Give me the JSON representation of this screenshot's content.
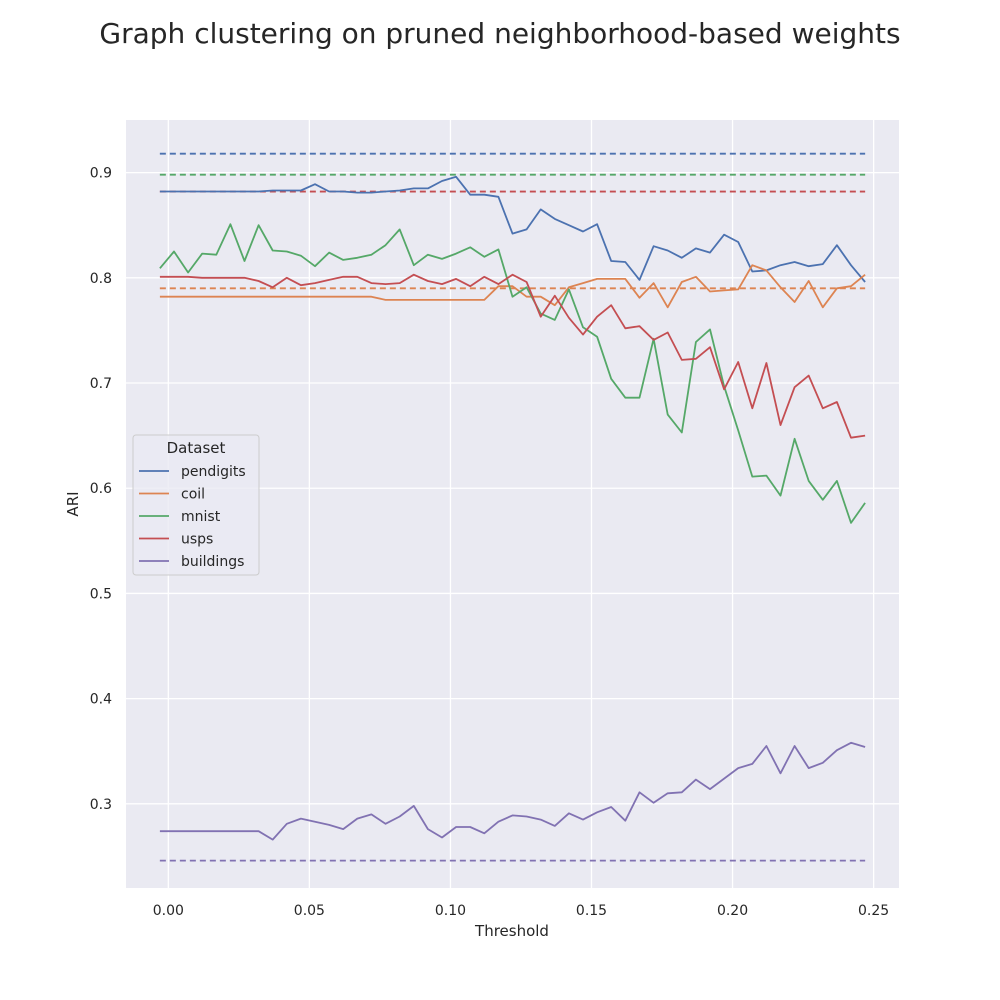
{
  "chart_data": {
    "type": "line",
    "title": "Graph clustering on pruned neighborhood-based weights",
    "xlabel": "Threshold",
    "ylabel": "ARI",
    "xlim": [
      -0.015,
      0.259
    ],
    "ylim": [
      0.22,
      0.95
    ],
    "xticks": [
      0.0,
      0.05,
      0.1,
      0.15,
      0.2,
      0.25
    ],
    "xtick_labels": [
      "0.00",
      "0.05",
      "0.10",
      "0.15",
      "0.20",
      "0.25"
    ],
    "yticks": [
      0.3,
      0.4,
      0.5,
      0.6,
      0.7,
      0.8,
      0.9
    ],
    "ytick_labels": [
      "0.3",
      "0.4",
      "0.5",
      "0.6",
      "0.7",
      "0.8",
      "0.9"
    ],
    "grid": true,
    "legend": {
      "title": "Dataset",
      "placement": "center-left"
    },
    "x": [
      -0.003,
      0.002,
      0.007,
      0.012,
      0.017,
      0.022,
      0.027,
      0.032,
      0.037,
      0.042,
      0.047,
      0.052,
      0.057,
      0.062,
      0.067,
      0.072,
      0.077,
      0.082,
      0.087,
      0.092,
      0.097,
      0.102,
      0.107,
      0.112,
      0.117,
      0.122,
      0.127,
      0.132,
      0.137,
      0.142,
      0.147,
      0.152,
      0.157,
      0.162,
      0.167,
      0.172,
      0.177,
      0.182,
      0.187,
      0.192,
      0.197,
      0.202,
      0.207,
      0.212,
      0.217,
      0.222,
      0.227,
      0.232,
      0.237,
      0.242,
      0.247
    ],
    "series": [
      {
        "name": "pendigits",
        "color": "#4c72b0",
        "baseline": 0.918,
        "values": [
          0.882,
          0.882,
          0.882,
          0.882,
          0.882,
          0.882,
          0.882,
          0.882,
          0.883,
          0.883,
          0.883,
          0.889,
          0.882,
          0.882,
          0.881,
          0.881,
          0.882,
          0.883,
          0.885,
          0.885,
          0.892,
          0.896,
          0.879,
          0.879,
          0.877,
          0.842,
          0.846,
          0.865,
          0.856,
          0.85,
          0.844,
          0.851,
          0.816,
          0.815,
          0.798,
          0.83,
          0.826,
          0.819,
          0.828,
          0.824,
          0.841,
          0.834,
          0.806,
          0.807,
          0.812,
          0.815,
          0.811,
          0.813,
          0.831,
          0.812,
          0.796
        ]
      },
      {
        "name": "coil",
        "color": "#dd8452",
        "baseline": 0.79,
        "values": [
          0.782,
          0.782,
          0.782,
          0.782,
          0.782,
          0.782,
          0.782,
          0.782,
          0.782,
          0.782,
          0.782,
          0.782,
          0.782,
          0.782,
          0.782,
          0.782,
          0.779,
          0.779,
          0.779,
          0.779,
          0.779,
          0.779,
          0.779,
          0.779,
          0.792,
          0.792,
          0.782,
          0.782,
          0.774,
          0.791,
          0.795,
          0.799,
          0.799,
          0.799,
          0.781,
          0.795,
          0.772,
          0.796,
          0.801,
          0.787,
          0.788,
          0.789,
          0.812,
          0.807,
          0.791,
          0.777,
          0.797,
          0.772,
          0.79,
          0.792,
          0.803
        ]
      },
      {
        "name": "mnist",
        "color": "#55a868",
        "baseline": 0.898,
        "values": [
          0.809,
          0.825,
          0.805,
          0.823,
          0.822,
          0.851,
          0.816,
          0.85,
          0.826,
          0.825,
          0.821,
          0.811,
          0.824,
          0.817,
          0.819,
          0.822,
          0.831,
          0.846,
          0.812,
          0.822,
          0.818,
          0.823,
          0.829,
          0.82,
          0.827,
          0.782,
          0.791,
          0.766,
          0.76,
          0.789,
          0.753,
          0.744,
          0.704,
          0.686,
          0.686,
          0.742,
          0.67,
          0.653,
          0.739,
          0.751,
          0.697,
          0.655,
          0.611,
          0.612,
          0.593,
          0.647,
          0.607,
          0.589,
          0.607,
          0.567,
          0.586
        ]
      },
      {
        "name": "usps",
        "color": "#c44e52",
        "baseline": 0.882,
        "values": [
          0.801,
          0.801,
          0.801,
          0.8,
          0.8,
          0.8,
          0.8,
          0.797,
          0.791,
          0.8,
          0.793,
          0.795,
          0.798,
          0.801,
          0.801,
          0.795,
          0.794,
          0.795,
          0.803,
          0.797,
          0.794,
          0.799,
          0.792,
          0.801,
          0.794,
          0.803,
          0.796,
          0.763,
          0.783,
          0.762,
          0.746,
          0.763,
          0.774,
          0.752,
          0.754,
          0.741,
          0.748,
          0.722,
          0.723,
          0.734,
          0.694,
          0.72,
          0.676,
          0.719,
          0.66,
          0.696,
          0.707,
          0.676,
          0.682,
          0.648,
          0.65
        ]
      },
      {
        "name": "buildings",
        "color": "#8172b2",
        "baseline": 0.246,
        "values": [
          0.274,
          0.274,
          0.274,
          0.274,
          0.274,
          0.274,
          0.274,
          0.274,
          0.266,
          0.281,
          0.286,
          0.283,
          0.28,
          0.276,
          0.286,
          0.29,
          0.281,
          0.288,
          0.298,
          0.276,
          0.268,
          0.278,
          0.278,
          0.272,
          0.283,
          0.289,
          0.288,
          0.285,
          0.279,
          0.291,
          0.285,
          0.292,
          0.297,
          0.284,
          0.311,
          0.301,
          0.31,
          0.311,
          0.323,
          0.314,
          0.324,
          0.334,
          0.338,
          0.355,
          0.329,
          0.355,
          0.334,
          0.339,
          0.351,
          0.358,
          0.354
        ]
      }
    ]
  }
}
